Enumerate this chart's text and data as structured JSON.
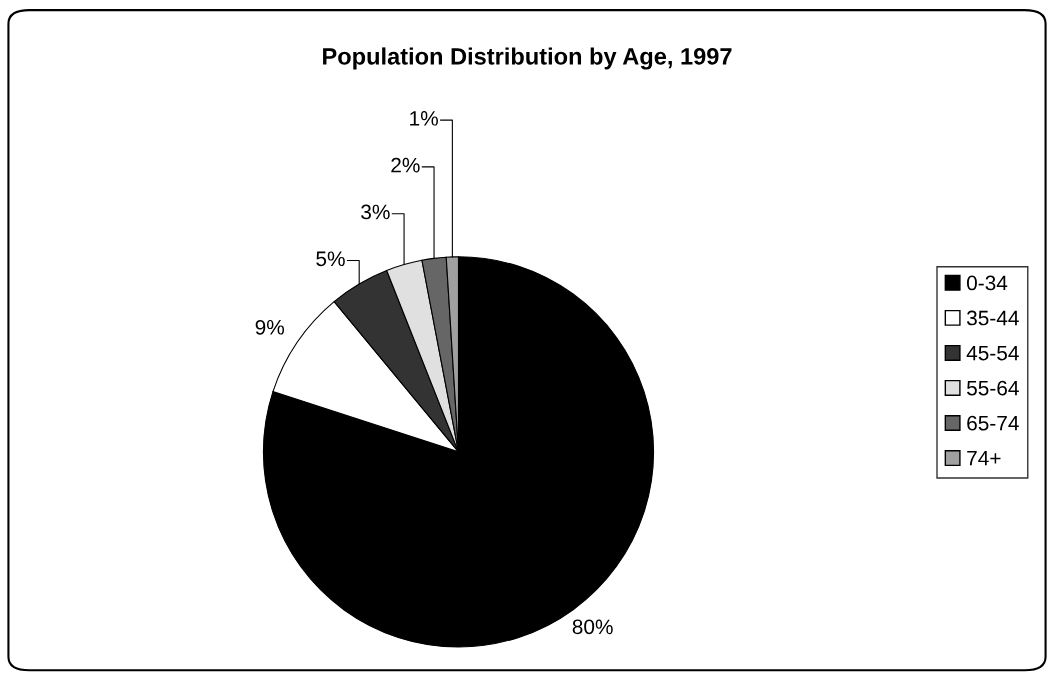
{
  "chart_data": {
    "type": "pie",
    "title": "Population Distribution by Age, 1997",
    "categories": [
      "0-34",
      "35-44",
      "45-54",
      "55-64",
      "65-74",
      "74+"
    ],
    "values": [
      80,
      9,
      5,
      3,
      2,
      1
    ],
    "colors": [
      "#000000",
      "#ffffff",
      "#333333",
      "#e0e0e0",
      "#666666",
      "#a0a0a0"
    ],
    "value_labels": [
      "80%",
      "9%",
      "5%",
      "3%",
      "2%",
      "1%"
    ],
    "legend": "right"
  }
}
